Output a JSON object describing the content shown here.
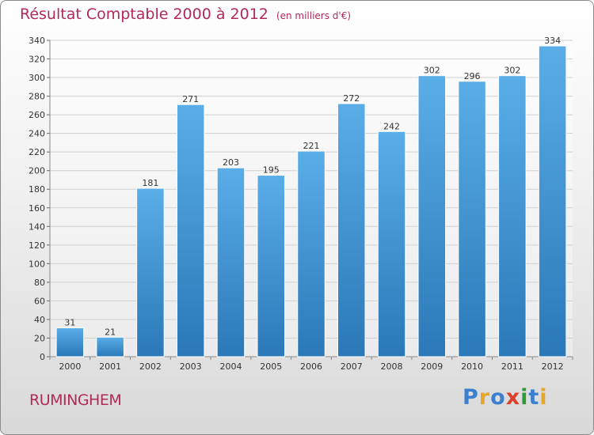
{
  "title": {
    "main": "Résultat Comptable 2000 à 2012",
    "unit": "(en milliers d'€)"
  },
  "commune": "RUMINGHEM",
  "brand": {
    "letters": [
      "P",
      "r",
      "o",
      "x",
      "i",
      "t",
      "i"
    ],
    "colors": [
      "#3b7fd1",
      "#e8a52b",
      "#3b7fd1",
      "#d9412a",
      "#2e9a3c",
      "#3b7fd1",
      "#e8a52b"
    ]
  },
  "colors": {
    "title": "#b02a5a",
    "bar_top": "#5aaee8",
    "bar_bottom": "#2a78b8",
    "grid": "#d0d0d0"
  },
  "chart_data": {
    "type": "bar",
    "categories": [
      "2000",
      "2001",
      "2002",
      "2003",
      "2004",
      "2005",
      "2006",
      "2007",
      "2008",
      "2009",
      "2010",
      "2011",
      "2012"
    ],
    "values": [
      31,
      21,
      181,
      271,
      203,
      195,
      221,
      272,
      242,
      302,
      296,
      302,
      334
    ],
    "title": "Résultat Comptable 2000 à 2012",
    "ylim": [
      0,
      340
    ],
    "yticks": [
      0,
      20,
      40,
      60,
      80,
      100,
      120,
      140,
      160,
      180,
      200,
      220,
      240,
      260,
      280,
      300,
      320,
      340
    ],
    "grid": true,
    "data_labels": true
  }
}
